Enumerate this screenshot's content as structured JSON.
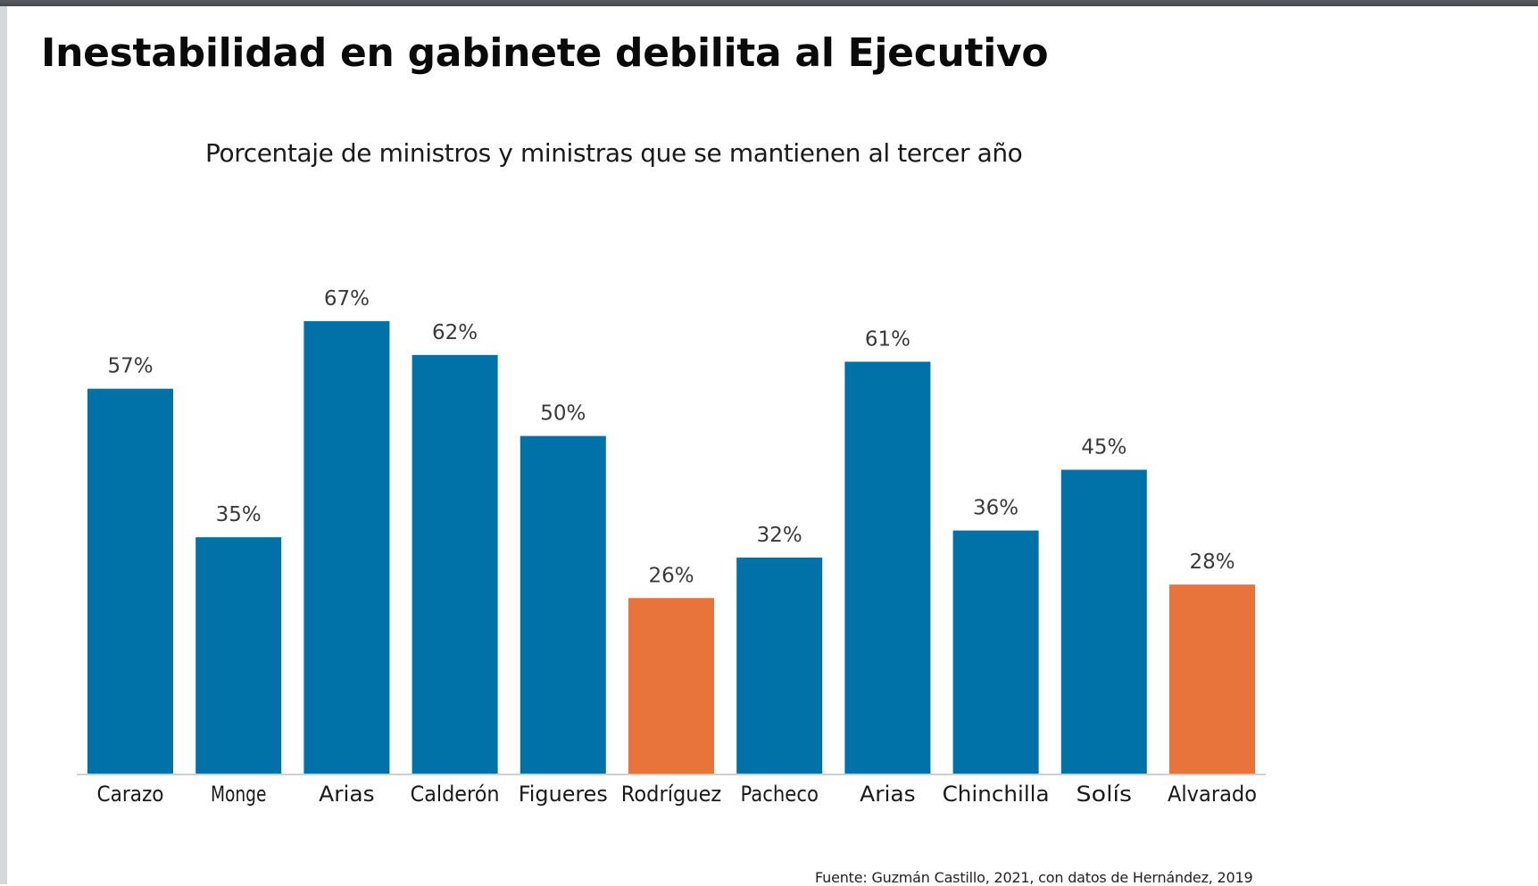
{
  "title": "Inestabilidad en gabinete debilita al Ejecutivo",
  "source": "Fuente: Guzmán Castillo, 2021, con datos de Hernández, 2019",
  "colors": {
    "default_bar": "#0072A8",
    "highlight_bar": "#E8743B",
    "label_text": "#3a3a3a",
    "axis_line": "#d0d0d0"
  },
  "chart_data": {
    "type": "bar",
    "title": "Porcentaje de ministros y ministras que se mantienen al tercer año",
    "xlabel": "",
    "ylabel": "",
    "ylim": [
      0,
      67
    ],
    "grid": false,
    "categories": [
      "Carazo",
      "Monge",
      "Arias",
      "Calderón",
      "Figueres",
      "Rodríguez",
      "Pacheco",
      "Arias",
      "Chinchilla",
      "Solís",
      "Alvarado"
    ],
    "values": [
      57,
      35,
      67,
      62,
      50,
      26,
      32,
      61,
      36,
      45,
      28
    ],
    "data_labels": [
      "57%",
      "35%",
      "67%",
      "62%",
      "50%",
      "26%",
      "32%",
      "61%",
      "36%",
      "45%",
      "28%"
    ],
    "highlighted": [
      false,
      false,
      false,
      false,
      false,
      true,
      false,
      false,
      false,
      false,
      true
    ],
    "unit": "%"
  }
}
